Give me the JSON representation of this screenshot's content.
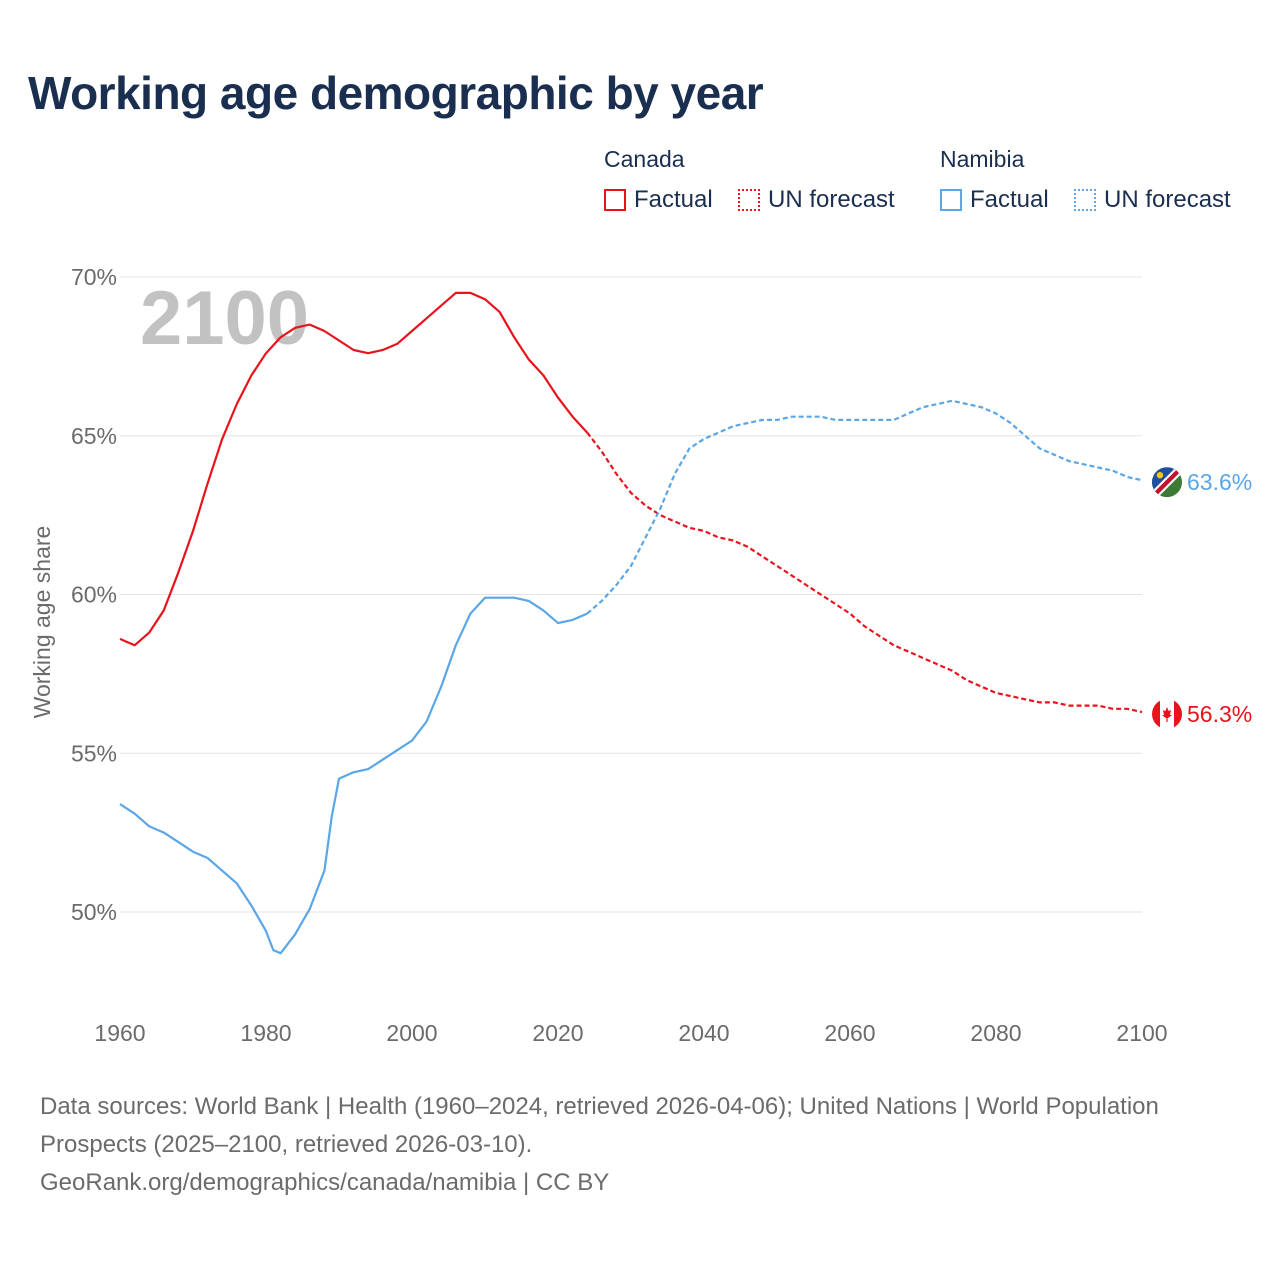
{
  "title": "Working age demographic by year",
  "legend": {
    "groups": [
      {
        "name": "Canada",
        "factual_label": "Factual",
        "forecast_label": "UN forecast",
        "color": "#e8131b"
      },
      {
        "name": "Namibia",
        "factual_label": "Factual",
        "forecast_label": "UN forecast",
        "color": "#5aa6e6"
      }
    ]
  },
  "year_watermark": "2100",
  "footer": {
    "line1": "Data sources: World Bank | Health (1960–2024, retrieved 2026-04-06); United Nations | World Population Prospects (2025–2100, retrieved 2026-03-10).",
    "line2": "GeoRank.org/demographics/canada/namibia | CC BY"
  },
  "chart_data": {
    "type": "line",
    "title": "Working age demographic by year",
    "xlabel": "",
    "ylabel": "Working age share",
    "xlim": [
      1960,
      2100
    ],
    "ylim": [
      47.5,
      70
    ],
    "x_ticks": [
      1960,
      1980,
      2000,
      2020,
      2040,
      2060,
      2080,
      2100
    ],
    "x_tick_labels": [
      "1960",
      "1980",
      "2000",
      "2020",
      "2040",
      "2060",
      "2080",
      "2100"
    ],
    "y_ticks": [
      50,
      55,
      60,
      65,
      70
    ],
    "y_tick_labels": [
      "50%",
      "55%",
      "60%",
      "65%",
      "70%"
    ],
    "grid": true,
    "factual_end_year": 2024,
    "series": [
      {
        "name": "Canada",
        "color": "#e8131b",
        "end_label": "56.3%",
        "flag": "canada-flag",
        "points": [
          [
            1960,
            58.6
          ],
          [
            1962,
            58.4
          ],
          [
            1964,
            58.8
          ],
          [
            1966,
            59.5
          ],
          [
            1968,
            60.7
          ],
          [
            1970,
            62.0
          ],
          [
            1972,
            63.5
          ],
          [
            1974,
            64.9
          ],
          [
            1976,
            66.0
          ],
          [
            1978,
            66.9
          ],
          [
            1980,
            67.6
          ],
          [
            1982,
            68.1
          ],
          [
            1984,
            68.4
          ],
          [
            1986,
            68.5
          ],
          [
            1988,
            68.3
          ],
          [
            1990,
            68.0
          ],
          [
            1992,
            67.7
          ],
          [
            1994,
            67.6
          ],
          [
            1996,
            67.7
          ],
          [
            1998,
            67.9
          ],
          [
            2000,
            68.3
          ],
          [
            2002,
            68.7
          ],
          [
            2004,
            69.1
          ],
          [
            2006,
            69.5
          ],
          [
            2008,
            69.5
          ],
          [
            2010,
            69.3
          ],
          [
            2012,
            68.9
          ],
          [
            2014,
            68.1
          ],
          [
            2016,
            67.4
          ],
          [
            2018,
            66.9
          ],
          [
            2020,
            66.2
          ],
          [
            2022,
            65.6
          ],
          [
            2024,
            65.1
          ],
          [
            2026,
            64.5
          ],
          [
            2028,
            63.8
          ],
          [
            2030,
            63.2
          ],
          [
            2032,
            62.8
          ],
          [
            2034,
            62.5
          ],
          [
            2036,
            62.3
          ],
          [
            2038,
            62.1
          ],
          [
            2040,
            62.0
          ],
          [
            2042,
            61.8
          ],
          [
            2044,
            61.7
          ],
          [
            2046,
            61.5
          ],
          [
            2048,
            61.2
          ],
          [
            2050,
            60.9
          ],
          [
            2052,
            60.6
          ],
          [
            2054,
            60.3
          ],
          [
            2056,
            60.0
          ],
          [
            2058,
            59.7
          ],
          [
            2060,
            59.4
          ],
          [
            2062,
            59.0
          ],
          [
            2064,
            58.7
          ],
          [
            2066,
            58.4
          ],
          [
            2068,
            58.2
          ],
          [
            2070,
            58.0
          ],
          [
            2072,
            57.8
          ],
          [
            2074,
            57.6
          ],
          [
            2076,
            57.3
          ],
          [
            2078,
            57.1
          ],
          [
            2080,
            56.9
          ],
          [
            2082,
            56.8
          ],
          [
            2084,
            56.7
          ],
          [
            2086,
            56.6
          ],
          [
            2088,
            56.6
          ],
          [
            2090,
            56.5
          ],
          [
            2092,
            56.5
          ],
          [
            2094,
            56.5
          ],
          [
            2096,
            56.4
          ],
          [
            2098,
            56.4
          ],
          [
            2100,
            56.3
          ]
        ]
      },
      {
        "name": "Namibia",
        "color": "#5aa6e6",
        "end_label": "63.6%",
        "flag": "namibia-flag",
        "points": [
          [
            1960,
            53.4
          ],
          [
            1962,
            53.1
          ],
          [
            1964,
            52.7
          ],
          [
            1966,
            52.5
          ],
          [
            1968,
            52.2
          ],
          [
            1970,
            51.9
          ],
          [
            1972,
            51.7
          ],
          [
            1974,
            51.3
          ],
          [
            1976,
            50.9
          ],
          [
            1978,
            50.2
          ],
          [
            1980,
            49.4
          ],
          [
            1981,
            48.8
          ],
          [
            1982,
            48.7
          ],
          [
            1984,
            49.3
          ],
          [
            1986,
            50.1
          ],
          [
            1988,
            51.3
          ],
          [
            1989,
            53.0
          ],
          [
            1990,
            54.2
          ],
          [
            1992,
            54.4
          ],
          [
            1994,
            54.5
          ],
          [
            1996,
            54.8
          ],
          [
            1998,
            55.1
          ],
          [
            2000,
            55.4
          ],
          [
            2002,
            56.0
          ],
          [
            2004,
            57.1
          ],
          [
            2006,
            58.4
          ],
          [
            2008,
            59.4
          ],
          [
            2010,
            59.9
          ],
          [
            2012,
            59.9
          ],
          [
            2014,
            59.9
          ],
          [
            2016,
            59.8
          ],
          [
            2018,
            59.5
          ],
          [
            2020,
            59.1
          ],
          [
            2022,
            59.2
          ],
          [
            2024,
            59.4
          ],
          [
            2026,
            59.8
          ],
          [
            2028,
            60.3
          ],
          [
            2030,
            60.9
          ],
          [
            2032,
            61.8
          ],
          [
            2034,
            62.7
          ],
          [
            2036,
            63.8
          ],
          [
            2038,
            64.6
          ],
          [
            2040,
            64.9
          ],
          [
            2042,
            65.1
          ],
          [
            2044,
            65.3
          ],
          [
            2046,
            65.4
          ],
          [
            2048,
            65.5
          ],
          [
            2050,
            65.5
          ],
          [
            2052,
            65.6
          ],
          [
            2054,
            65.6
          ],
          [
            2056,
            65.6
          ],
          [
            2058,
            65.5
          ],
          [
            2060,
            65.5
          ],
          [
            2062,
            65.5
          ],
          [
            2064,
            65.5
          ],
          [
            2066,
            65.5
          ],
          [
            2068,
            65.7
          ],
          [
            2070,
            65.9
          ],
          [
            2072,
            66.0
          ],
          [
            2074,
            66.1
          ],
          [
            2076,
            66.0
          ],
          [
            2078,
            65.9
          ],
          [
            2080,
            65.7
          ],
          [
            2082,
            65.4
          ],
          [
            2084,
            65.0
          ],
          [
            2086,
            64.6
          ],
          [
            2088,
            64.4
          ],
          [
            2090,
            64.2
          ],
          [
            2092,
            64.1
          ],
          [
            2094,
            64.0
          ],
          [
            2096,
            63.9
          ],
          [
            2098,
            63.7
          ],
          [
            2100,
            63.6
          ]
        ]
      }
    ]
  }
}
